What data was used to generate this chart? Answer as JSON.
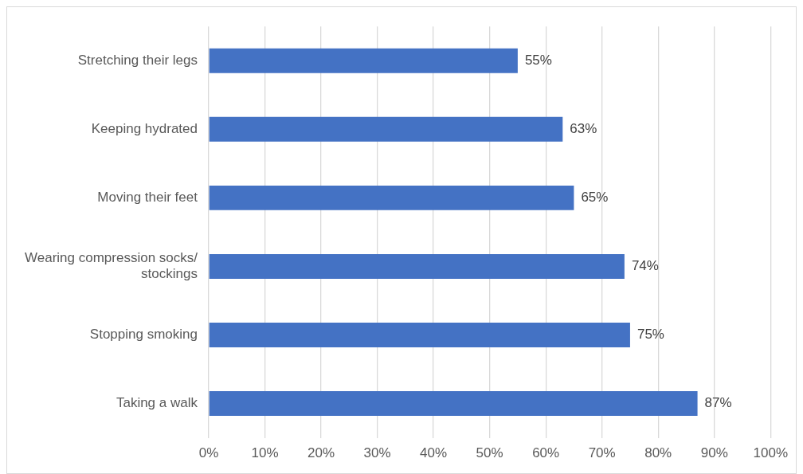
{
  "chart_data": {
    "type": "bar",
    "orientation": "horizontal",
    "categories": [
      "Stretching their legs",
      "Keeping hydrated",
      "Moving their feet",
      "Wearing compression socks/ stockings",
      "Stopping smoking",
      "Taking a walk"
    ],
    "values": [
      55,
      63,
      65,
      74,
      75,
      87
    ],
    "value_labels": [
      "55%",
      "63%",
      "65%",
      "74%",
      "75%",
      "87%"
    ],
    "color": "#4472c4",
    "xlim": [
      0,
      100
    ],
    "xticks": [
      {
        "value": 0,
        "label": "0%"
      },
      {
        "value": 10,
        "label": "10%"
      },
      {
        "value": 20,
        "label": "20%"
      },
      {
        "value": 30,
        "label": "30%"
      },
      {
        "value": 40,
        "label": "40%"
      },
      {
        "value": 50,
        "label": "50%"
      },
      {
        "value": 60,
        "label": "60%"
      },
      {
        "value": 70,
        "label": "70%"
      },
      {
        "value": 80,
        "label": "80%"
      },
      {
        "value": 90,
        "label": "90%"
      },
      {
        "value": 100,
        "label": "100%"
      }
    ],
    "grid": "x",
    "legend": false
  }
}
